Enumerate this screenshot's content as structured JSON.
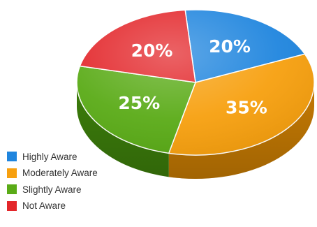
{
  "chart_data": {
    "type": "pie",
    "style": "3d",
    "categories": [
      "Highly Aware",
      "Moderately Aware",
      "Slightly Aware",
      "Not Aware"
    ],
    "values": [
      20,
      35,
      25,
      20
    ],
    "labels": [
      "20%",
      "35%",
      "25%",
      "20%"
    ],
    "colors": [
      "#1f85de",
      "#f7a00f",
      "#5aab17",
      "#e3262a"
    ],
    "side_colors": [
      "#145ea6",
      "#c57a03",
      "#3c7d0b",
      "#a81417"
    ],
    "legend_position": "bottom-left",
    "legend": [
      "Highly Aware",
      "Moderately Aware",
      "Slightly Aware",
      "Not Aware"
    ]
  }
}
